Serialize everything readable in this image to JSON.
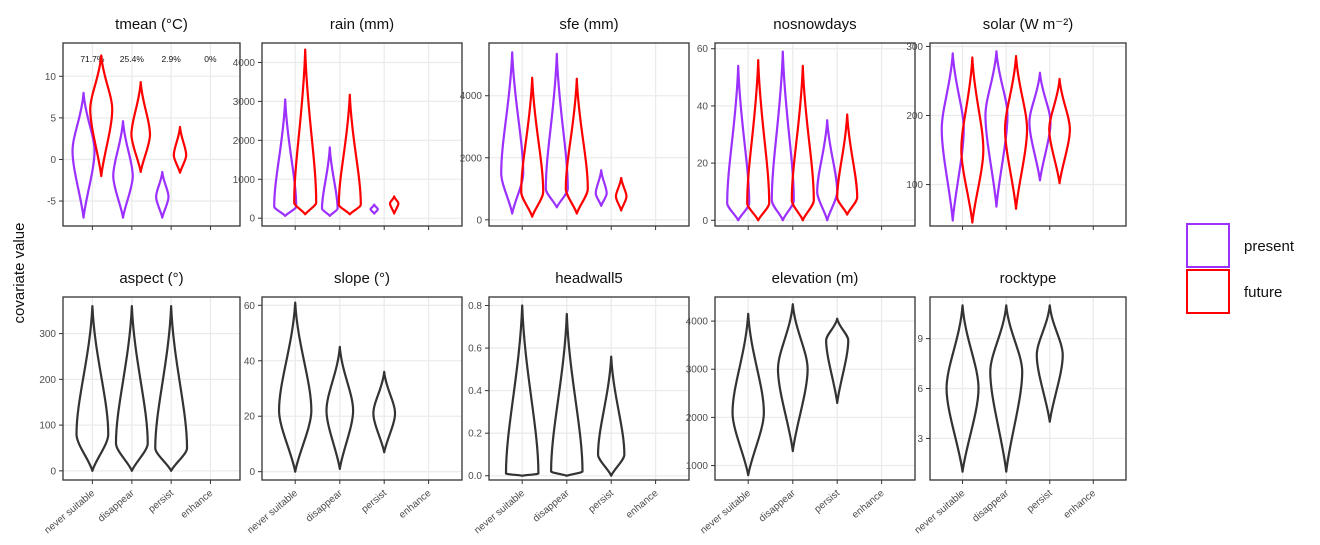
{
  "figure": {
    "y_axis_label": "covariate value",
    "legend": [
      {
        "label": "present",
        "color": "#9b30ff"
      },
      {
        "label": "future",
        "color": "#ff0000"
      }
    ],
    "x_categories": [
      "never suitable",
      "disappear",
      "persist",
      "enhance"
    ],
    "single_color": "#333333"
  },
  "chart_data": [
    {
      "type": "violin",
      "title": "tmean (°C)",
      "yticks": [
        -5,
        0,
        5,
        10
      ],
      "ylim": [
        -8,
        14
      ],
      "percent_labels": [
        "71.7%",
        "25.4%",
        "2.9%",
        "0%"
      ],
      "series": [
        {
          "name": "present",
          "violins": [
            {
              "category": "never suitable",
              "min": -7,
              "max": 8,
              "median": 1
            },
            {
              "category": "disappear",
              "min": -7,
              "max": 4.6,
              "median": -2
            },
            {
              "category": "persist",
              "min": -7,
              "max": -1.5,
              "median": -4.5
            }
          ]
        },
        {
          "name": "future",
          "violins": [
            {
              "category": "never suitable",
              "min": -2,
              "max": 12.5,
              "median": 6
            },
            {
              "category": "disappear",
              "min": -1.5,
              "max": 9.3,
              "median": 3
            },
            {
              "category": "persist",
              "min": -1.6,
              "max": 3.9,
              "median": 0.5
            }
          ]
        }
      ]
    },
    {
      "type": "violin",
      "title": "rain (mm)",
      "yticks": [
        0,
        1000,
        2000,
        3000,
        4000
      ],
      "ylim": [
        -200,
        4500
      ],
      "series": [
        {
          "name": "present",
          "violins": [
            {
              "category": "never suitable",
              "min": 60,
              "max": 3050,
              "median": 300
            },
            {
              "category": "disappear",
              "min": 60,
              "max": 1820,
              "median": 250
            },
            {
              "category": "persist",
              "min": 120,
              "max": 350,
              "median": 230
            }
          ]
        },
        {
          "name": "future",
          "violins": [
            {
              "category": "never suitable",
              "min": 100,
              "max": 4330,
              "median": 400
            },
            {
              "category": "disappear",
              "min": 100,
              "max": 3170,
              "median": 350
            },
            {
              "category": "persist",
              "min": 120,
              "max": 560,
              "median": 380
            }
          ]
        }
      ]
    },
    {
      "type": "violin",
      "title": "sfe (mm)",
      "yticks": [
        0,
        2000,
        4000
      ],
      "ylim": [
        -200,
        5700
      ],
      "series": [
        {
          "name": "present",
          "violins": [
            {
              "category": "never suitable",
              "min": 200,
              "max": 5400,
              "median": 1500
            },
            {
              "category": "disappear",
              "min": 400,
              "max": 5350,
              "median": 1000
            },
            {
              "category": "persist",
              "min": 450,
              "max": 1600,
              "median": 850
            }
          ]
        },
        {
          "name": "future",
          "violins": [
            {
              "category": "never suitable",
              "min": 100,
              "max": 4580,
              "median": 900
            },
            {
              "category": "disappear",
              "min": 200,
              "max": 4550,
              "median": 1000
            },
            {
              "category": "persist",
              "min": 300,
              "max": 1350,
              "median": 750
            }
          ]
        }
      ]
    },
    {
      "type": "violin",
      "title": "nosnowdays",
      "yticks": [
        0,
        20,
        40,
        60
      ],
      "ylim": [
        -2,
        62
      ],
      "series": [
        {
          "name": "present",
          "violins": [
            {
              "category": "never suitable",
              "min": 0,
              "max": 54,
              "median": 6
            },
            {
              "category": "disappear",
              "min": 0,
              "max": 59,
              "median": 7
            },
            {
              "category": "persist",
              "min": 0,
              "max": 35,
              "median": 10
            }
          ]
        },
        {
          "name": "future",
          "violins": [
            {
              "category": "never suitable",
              "min": 0,
              "max": 56,
              "median": 6
            },
            {
              "category": "disappear",
              "min": 0,
              "max": 54,
              "median": 7
            },
            {
              "category": "persist",
              "min": 2,
              "max": 37,
              "median": 8
            }
          ]
        }
      ]
    },
    {
      "type": "violin",
      "title": "solar (W m⁻²)",
      "yticks": [
        100,
        200,
        300
      ],
      "ylim": [
        40,
        305
      ],
      "series": [
        {
          "name": "present",
          "violins": [
            {
              "category": "never suitable",
              "min": 48,
              "max": 290,
              "median": 180
            },
            {
              "category": "disappear",
              "min": 68,
              "max": 293,
              "median": 200
            },
            {
              "category": "persist",
              "min": 106,
              "max": 262,
              "median": 190
            }
          ]
        },
        {
          "name": "future",
          "violins": [
            {
              "category": "never suitable",
              "min": 45,
              "max": 284,
              "median": 150
            },
            {
              "category": "disappear",
              "min": 65,
              "max": 286,
              "median": 180
            },
            {
              "category": "persist",
              "min": 102,
              "max": 253,
              "median": 180
            }
          ]
        }
      ]
    },
    {
      "type": "violin",
      "title": "aspect (°)",
      "yticks": [
        0,
        100,
        200,
        300
      ],
      "ylim": [
        -20,
        380
      ],
      "series": [
        {
          "name": "all",
          "violins": [
            {
              "category": "never suitable",
              "min": 0,
              "max": 360,
              "median": 80
            },
            {
              "category": "disappear",
              "min": 0,
              "max": 360,
              "median": 60
            },
            {
              "category": "persist",
              "min": 0,
              "max": 360,
              "median": 50
            }
          ]
        }
      ]
    },
    {
      "type": "violin",
      "title": "slope (°)",
      "yticks": [
        0,
        20,
        40,
        60
      ],
      "ylim": [
        -3,
        63
      ],
      "series": [
        {
          "name": "all",
          "violins": [
            {
              "category": "never suitable",
              "min": 0,
              "max": 61,
              "median": 22
            },
            {
              "category": "disappear",
              "min": 1,
              "max": 45,
              "median": 22
            },
            {
              "category": "persist",
              "min": 7,
              "max": 36,
              "median": 21
            }
          ]
        }
      ]
    },
    {
      "type": "violin",
      "title": "headwall5",
      "yticks": [
        0.0,
        0.2,
        0.4,
        0.6,
        0.8
      ],
      "ylim": [
        -0.02,
        0.84
      ],
      "series": [
        {
          "name": "all",
          "violins": [
            {
              "category": "never suitable",
              "min": 0,
              "max": 0.8,
              "median": 0.01
            },
            {
              "category": "disappear",
              "min": 0,
              "max": 0.76,
              "median": 0.02
            },
            {
              "category": "persist",
              "min": 0,
              "max": 0.56,
              "median": 0.1
            }
          ]
        }
      ]
    },
    {
      "type": "violin",
      "title": "elevation (m)",
      "yticks": [
        1000,
        2000,
        3000,
        4000
      ],
      "ylim": [
        700,
        4500
      ],
      "series": [
        {
          "name": "all",
          "violins": [
            {
              "category": "never suitable",
              "min": 800,
              "max": 4150,
              "median": 2100
            },
            {
              "category": "disappear",
              "min": 1300,
              "max": 4350,
              "median": 3000
            },
            {
              "category": "persist",
              "min": 2300,
              "max": 4050,
              "median": 3600
            }
          ]
        }
      ]
    },
    {
      "type": "violin",
      "title": "rocktype",
      "yticks": [
        3,
        6,
        9
      ],
      "ylim": [
        0.5,
        11.5
      ],
      "series": [
        {
          "name": "all",
          "violins": [
            {
              "category": "never suitable",
              "min": 1,
              "max": 11,
              "median": 6
            },
            {
              "category": "disappear",
              "min": 1,
              "max": 11,
              "median": 7
            },
            {
              "category": "persist",
              "min": 4,
              "max": 11,
              "median": 8
            }
          ]
        }
      ]
    }
  ]
}
